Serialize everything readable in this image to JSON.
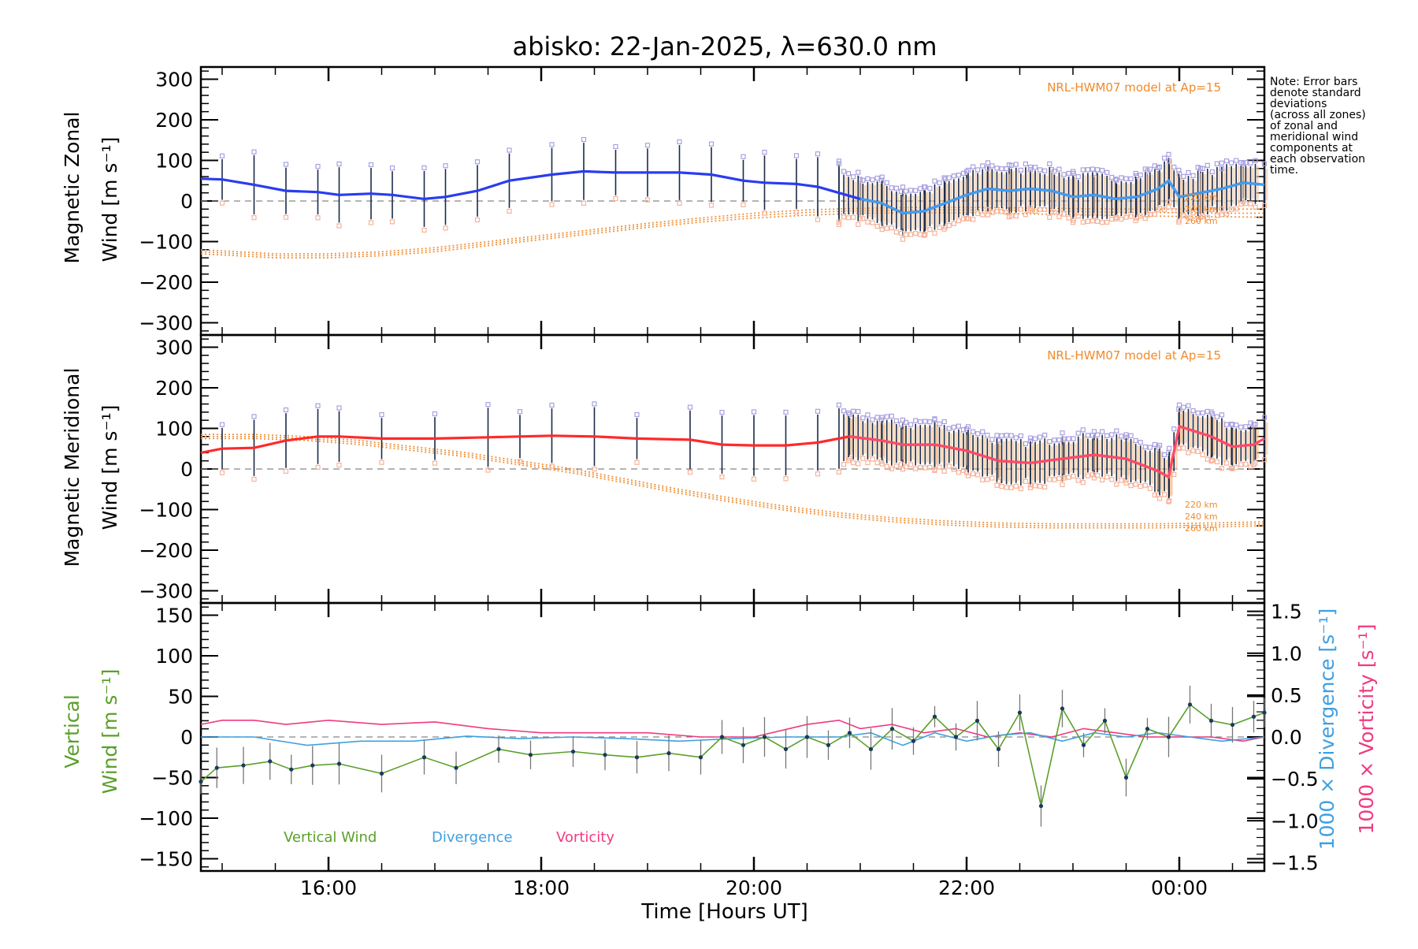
{
  "title": "abisko: 22-Jan-2025, λ=630.0 nm",
  "note": [
    "Note: Error bars",
    "denote standard",
    "deviations",
    "(across all zones)",
    "of zonal and",
    "meridional wind",
    "components at",
    "each observation",
    "time."
  ],
  "colors": {
    "zonal": "#2a3cf0",
    "zonal_light": "#3fa0f0",
    "meridional": "#ff2a2a",
    "meridional_light": "#ff4a6a",
    "model": "#f08a2b",
    "vertical": "#5aa02a",
    "divergence": "#40a0e0",
    "vorticity": "#f03a80",
    "errorbar": "#1a2a4a",
    "box_hi": "#a9a0e0",
    "box_lo": "#f7b39a",
    "zero": "#888888"
  },
  "x_axis": {
    "title": "Time [Hours UT]",
    "range_hours": [
      14.8,
      24.8
    ],
    "ticks": [
      {
        "h": 16,
        "label": "16:00"
      },
      {
        "h": 18,
        "label": "18:00"
      },
      {
        "h": 20,
        "label": "20:00"
      },
      {
        "h": 22,
        "label": "22:00"
      },
      {
        "h": 24,
        "label": "00:00"
      }
    ]
  },
  "panels": {
    "zonal": {
      "ylabel": [
        "Magnetic Zonal",
        "Wind [m s⁻¹]"
      ],
      "ylim": [
        -330,
        330
      ],
      "ticks": [
        "300",
        "200",
        "100",
        "0",
        "−100",
        "−200",
        "−300"
      ],
      "tick_values": [
        300,
        200,
        100,
        0,
        -100,
        -200,
        -300
      ],
      "model_label": "NRL-HWM07 model at Ap=15",
      "alt_labels": [
        "220 km",
        "240 km",
        "260 km"
      ]
    },
    "meridional": {
      "ylabel": [
        "Magnetic Meridional",
        "Wind [m s⁻¹]"
      ],
      "ylim": [
        -330,
        330
      ],
      "ticks": [
        "300",
        "200",
        "100",
        "0",
        "−100",
        "−200",
        "−300"
      ],
      "tick_values": [
        300,
        200,
        100,
        0,
        -100,
        -200,
        -300
      ],
      "model_label": "NRL-HWM07 model at Ap=15",
      "alt_labels": [
        "220 km",
        "240 km",
        "260 km"
      ]
    },
    "vertical": {
      "ylabel": [
        "Vertical",
        "Wind [m s⁻¹]"
      ],
      "ylim": [
        -165,
        165
      ],
      "ticks": [
        "150",
        "100",
        "50",
        "0",
        "−50",
        "−100",
        "−150"
      ],
      "tick_values": [
        150,
        100,
        50,
        0,
        -50,
        -100,
        -150
      ],
      "right_ylim": [
        -1.6,
        1.6
      ],
      "right_ticks": [
        "1.5",
        "1.0",
        "0.5",
        "0.0",
        "−0.5",
        "−1.0",
        "−1.5"
      ],
      "right_tick_values": [
        1.5,
        1.0,
        0.5,
        0.0,
        -0.5,
        -1.0,
        -1.5
      ],
      "right_label_div": "1000 × Divergence [s⁻¹]",
      "right_label_vor": "1000 × Vorticity [s⁻¹]",
      "legend": [
        "Vertical Wind",
        "Divergence",
        "Vorticity"
      ]
    }
  },
  "chart_data": [
    {
      "type": "line",
      "title": "Magnetic Zonal Wind",
      "ylabel": "Magnetic Zonal Wind [m s⁻¹]",
      "ylim": [
        -330,
        330
      ],
      "series": [
        {
          "name": "zonal_mean",
          "x": [
            14.8,
            15.0,
            15.3,
            15.6,
            15.9,
            16.1,
            16.4,
            16.6,
            16.9,
            17.1,
            17.4,
            17.7,
            18.1,
            18.4,
            18.7,
            19.0,
            19.3,
            19.6,
            19.9,
            20.1,
            20.4,
            20.6,
            20.8,
            21.0,
            21.2,
            21.4,
            21.6,
            21.8,
            22.0,
            22.2,
            22.4,
            22.6,
            22.8,
            23.0,
            23.2,
            23.4,
            23.6,
            23.7,
            23.8,
            23.9,
            24.0,
            24.2,
            24.4,
            24.6,
            24.8
          ],
          "y": [
            55,
            53,
            40,
            25,
            22,
            15,
            18,
            15,
            5,
            10,
            25,
            50,
            65,
            73,
            70,
            70,
            70,
            65,
            50,
            45,
            42,
            35,
            20,
            5,
            -5,
            -30,
            -25,
            -5,
            15,
            30,
            25,
            30,
            25,
            10,
            15,
            5,
            10,
            20,
            30,
            50,
            10,
            20,
            30,
            45,
            40
          ]
        },
        {
          "name": "model_220km",
          "x": [
            14.8,
            15.5,
            16.0,
            16.5,
            17.0,
            17.5,
            18.0,
            18.5,
            19.0,
            19.5,
            20.0,
            20.5,
            21.0,
            21.5,
            22.0,
            22.5,
            23.0,
            23.5,
            24.0,
            24.5,
            24.8
          ],
          "y": [
            -120,
            -130,
            -130,
            -125,
            -115,
            -100,
            -85,
            -70,
            -55,
            -42,
            -30,
            -22,
            -18,
            -16,
            -16,
            -17,
            -19,
            -20,
            -20,
            -20,
            -20
          ]
        },
        {
          "name": "model_240km",
          "x": [
            14.8,
            15.5,
            16.0,
            16.5,
            17.0,
            17.5,
            18.0,
            18.5,
            19.0,
            19.5,
            20.0,
            20.5,
            21.0,
            21.5,
            22.0,
            22.5,
            23.0,
            23.5,
            24.0,
            24.5,
            24.8
          ],
          "y": [
            -125,
            -135,
            -135,
            -130,
            -120,
            -105,
            -90,
            -75,
            -60,
            -47,
            -36,
            -28,
            -24,
            -22,
            -22,
            -24,
            -26,
            -28,
            -29,
            -30,
            -30
          ]
        },
        {
          "name": "model_260km",
          "x": [
            14.8,
            15.5,
            16.0,
            16.5,
            17.0,
            17.5,
            18.0,
            18.5,
            19.0,
            19.5,
            20.0,
            20.5,
            21.0,
            21.5,
            22.0,
            22.5,
            23.0,
            23.5,
            24.0,
            24.5,
            24.8
          ],
          "y": [
            -130,
            -140,
            -140,
            -135,
            -125,
            -110,
            -95,
            -80,
            -65,
            -52,
            -42,
            -35,
            -30,
            -29,
            -29,
            -31,
            -34,
            -36,
            -38,
            -39,
            -40
          ]
        }
      ]
    },
    {
      "type": "line",
      "title": "Magnetic Meridional Wind",
      "ylabel": "Magnetic Meridional Wind [m s⁻¹]",
      "ylim": [
        -330,
        330
      ],
      "series": [
        {
          "name": "meridional_mean",
          "x": [
            14.8,
            15.0,
            15.3,
            15.6,
            15.9,
            16.1,
            16.5,
            17.0,
            17.5,
            17.8,
            18.1,
            18.5,
            18.9,
            19.4,
            19.7,
            20.0,
            20.3,
            20.6,
            20.9,
            21.2,
            21.4,
            21.7,
            22.0,
            22.3,
            22.6,
            22.9,
            23.2,
            23.5,
            23.8,
            23.9,
            24.0,
            24.3,
            24.5,
            24.7,
            24.8
          ],
          "y": [
            40,
            50,
            52,
            70,
            80,
            80,
            75,
            75,
            78,
            80,
            82,
            80,
            75,
            72,
            60,
            58,
            58,
            65,
            80,
            70,
            60,
            60,
            45,
            20,
            15,
            25,
            35,
            25,
            -5,
            -20,
            105,
            80,
            55,
            60,
            75
          ]
        },
        {
          "name": "model_220km",
          "x": [
            14.8,
            15.3,
            15.8,
            16.3,
            16.8,
            17.3,
            17.8,
            18.3,
            18.8,
            19.3,
            19.8,
            20.3,
            20.8,
            21.3,
            21.8,
            22.3,
            22.8,
            23.3,
            23.8,
            24.3,
            24.8
          ],
          "y": [
            85,
            85,
            80,
            70,
            55,
            40,
            20,
            0,
            -25,
            -50,
            -72,
            -92,
            -108,
            -120,
            -128,
            -133,
            -135,
            -135,
            -135,
            -133,
            -130
          ]
        },
        {
          "name": "model_240km",
          "x": [
            14.8,
            15.3,
            15.8,
            16.3,
            16.8,
            17.3,
            17.8,
            18.3,
            18.8,
            19.3,
            19.8,
            20.3,
            20.8,
            21.3,
            21.8,
            22.3,
            22.8,
            23.3,
            23.8,
            24.3,
            24.8
          ],
          "y": [
            80,
            80,
            75,
            65,
            50,
            35,
            15,
            -5,
            -30,
            -55,
            -77,
            -97,
            -113,
            -125,
            -133,
            -138,
            -140,
            -140,
            -140,
            -138,
            -135
          ]
        },
        {
          "name": "model_260km",
          "x": [
            14.8,
            15.3,
            15.8,
            16.3,
            16.8,
            17.3,
            17.8,
            18.3,
            18.8,
            19.3,
            19.8,
            20.3,
            20.8,
            21.3,
            21.8,
            22.3,
            22.8,
            23.3,
            23.8,
            24.3,
            24.8
          ],
          "y": [
            75,
            75,
            70,
            60,
            45,
            30,
            10,
            -10,
            -35,
            -60,
            -82,
            -102,
            -118,
            -130,
            -138,
            -143,
            -145,
            -145,
            -145,
            -143,
            -140
          ]
        }
      ]
    },
    {
      "type": "line",
      "title": "Vertical Wind / Divergence / Vorticity",
      "ylabel": "Vertical Wind [m s⁻¹]",
      "ylim": [
        -165,
        165
      ],
      "y2lim": [
        -1.6,
        1.6
      ],
      "series": [
        {
          "name": "Vertical Wind",
          "axis": "left",
          "x": [
            14.8,
            14.95,
            15.2,
            15.45,
            15.65,
            15.85,
            16.1,
            16.5,
            16.9,
            17.2,
            17.6,
            17.9,
            18.3,
            18.6,
            18.9,
            19.2,
            19.5,
            19.7,
            19.9,
            20.1,
            20.3,
            20.5,
            20.7,
            20.9,
            21.1,
            21.3,
            21.5,
            21.7,
            21.9,
            22.1,
            22.3,
            22.5,
            22.7,
            22.9,
            23.1,
            23.3,
            23.5,
            23.7,
            23.9,
            24.1,
            24.3,
            24.5,
            24.7,
            24.8
          ],
          "y": [
            -55,
            -38,
            -35,
            -30,
            -40,
            -35,
            -33,
            -45,
            -25,
            -38,
            -15,
            -22,
            -18,
            -22,
            -25,
            -20,
            -25,
            0,
            -10,
            0,
            -15,
            0,
            -10,
            5,
            -15,
            10,
            -5,
            25,
            0,
            20,
            -15,
            30,
            -85,
            35,
            -10,
            20,
            -50,
            10,
            0,
            40,
            20,
            15,
            25,
            30
          ]
        },
        {
          "name": "Divergence",
          "axis": "right",
          "x": [
            14.8,
            15.3,
            15.8,
            16.3,
            16.8,
            17.3,
            17.8,
            18.3,
            18.8,
            19.3,
            19.8,
            20.3,
            20.8,
            21.1,
            21.4,
            21.7,
            22.0,
            22.3,
            22.6,
            22.9,
            23.2,
            23.5,
            23.8,
            24.1,
            24.4,
            24.8
          ],
          "y": [
            0,
            0,
            -0.1,
            -0.05,
            -0.05,
            0.01,
            -0.02,
            0,
            -0.02,
            -0.05,
            -0.02,
            0,
            0,
            0.05,
            -0.1,
            0.05,
            -0.05,
            0.02,
            0.05,
            -0.05,
            0.05,
            0,
            0.05,
            0,
            -0.05,
            0
          ]
        },
        {
          "name": "Vorticity",
          "axis": "right",
          "x": [
            14.8,
            15.0,
            15.3,
            15.6,
            16.0,
            16.5,
            17.0,
            17.5,
            18.0,
            18.5,
            19.0,
            19.5,
            20.0,
            20.5,
            20.8,
            21.0,
            21.3,
            21.6,
            21.9,
            22.2,
            22.5,
            22.8,
            23.1,
            23.4,
            23.7,
            24.0,
            24.3,
            24.6,
            24.8
          ],
          "y": [
            0.15,
            0.2,
            0.2,
            0.15,
            0.2,
            0.15,
            0.18,
            0.1,
            0.05,
            0.05,
            0.05,
            0,
            0,
            0.15,
            0.2,
            0.1,
            0.15,
            0.05,
            0.1,
            0,
            0.05,
            0,
            0.1,
            0.05,
            0,
            0,
            0,
            -0.05,
            0
          ]
        }
      ]
    }
  ]
}
